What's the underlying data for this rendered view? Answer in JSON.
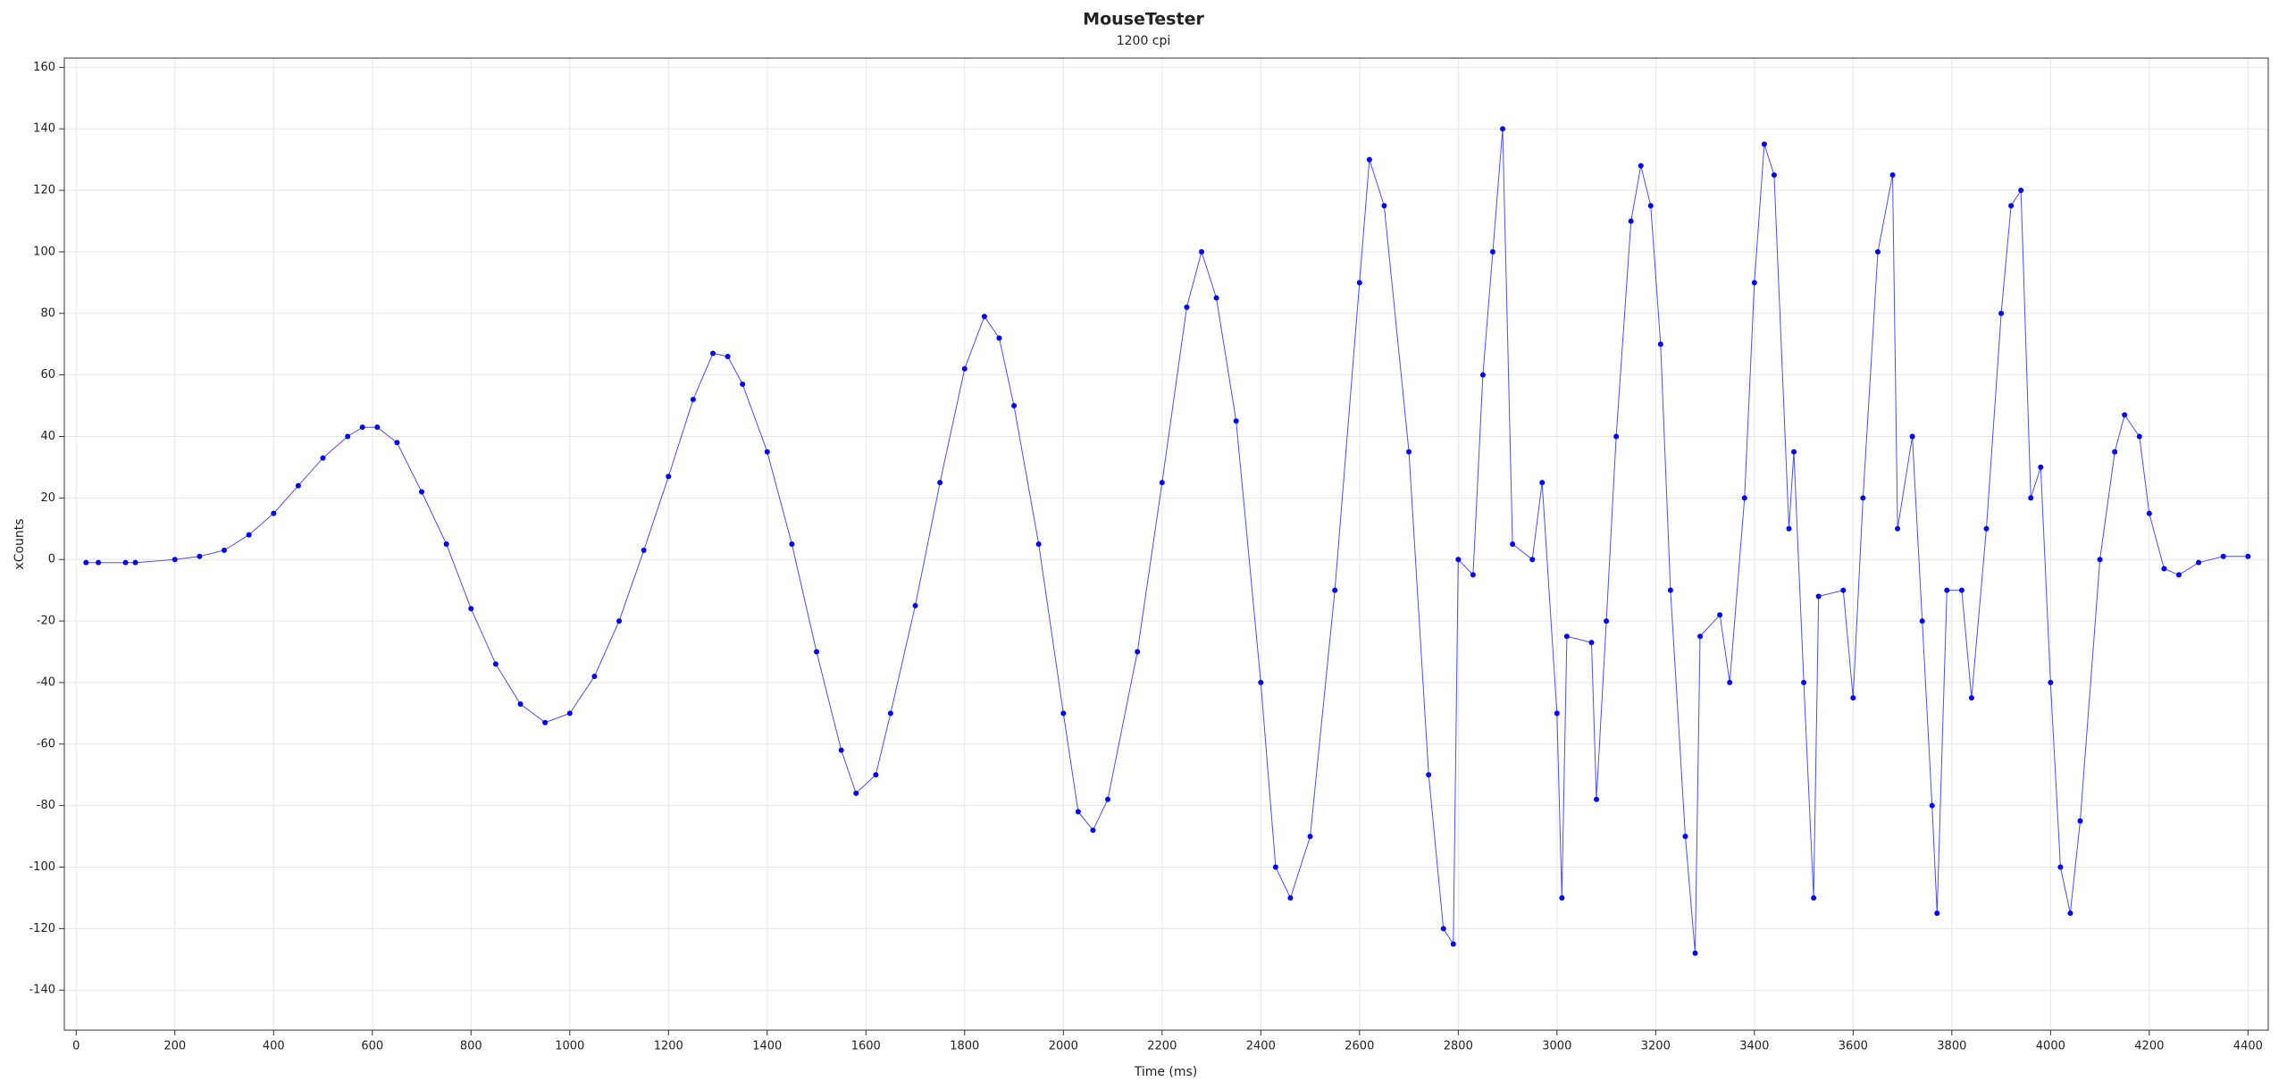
{
  "chart_data": {
    "type": "scatter",
    "title": "MouseTester",
    "subtitle": "1200 cpi",
    "x_label": "Time (ms)",
    "y_label": "xCounts",
    "series": [
      {
        "name": "xCounts",
        "color": "#0000ff",
        "x": [
          20,
          45,
          100,
          120,
          200,
          250,
          300,
          350,
          400,
          450,
          500,
          550,
          580,
          610,
          650,
          700,
          750,
          800,
          850,
          900,
          950,
          1000,
          1050,
          1100,
          1150,
          1200,
          1250,
          1290,
          1320,
          1350,
          1400,
          1450,
          1500,
          1550,
          1580,
          1620,
          1650,
          1700,
          1750,
          1800,
          1840,
          1870,
          1900,
          1950,
          2000,
          2030,
          2060,
          2090,
          2150,
          2200,
          2250,
          2280,
          2310,
          2350,
          2400,
          2430,
          2460,
          2500,
          2550,
          2600,
          2620,
          2650,
          2700,
          2740,
          2770,
          2790,
          2800,
          2830,
          2850,
          2870,
          2890,
          2910,
          2950,
          2970,
          3000,
          3010,
          3020,
          3070,
          3080,
          3100,
          3120,
          3150,
          3170,
          3190,
          3210,
          3230,
          3260,
          3280,
          3290,
          3330,
          3350,
          3380,
          3400,
          3420,
          3440,
          3470,
          3480,
          3500,
          3520,
          3530,
          3580,
          3600,
          3620,
          3650,
          3680,
          3690,
          3720,
          3740,
          3760,
          3770,
          3790,
          3820,
          3840,
          3870,
          3900,
          3920,
          3940,
          3960,
          3980,
          4000,
          4020,
          4040,
          4060,
          4100,
          4130,
          4150,
          4180,
          4200,
          4230,
          4260,
          4300,
          4350,
          4400
        ],
        "values": [
          -1,
          -1,
          -1,
          -1,
          0,
          1,
          3,
          8,
          15,
          24,
          33,
          40,
          43,
          43,
          38,
          22,
          5,
          -16,
          -34,
          -47,
          -53,
          -50,
          -38,
          -20,
          3,
          27,
          52,
          67,
          66,
          57,
          35,
          5,
          -30,
          -62,
          -76,
          -70,
          -50,
          -15,
          25,
          62,
          79,
          72,
          50,
          5,
          -50,
          -82,
          -88,
          -78,
          -30,
          25,
          82,
          100,
          85,
          45,
          -40,
          -100,
          -110,
          -90,
          -10,
          90,
          130,
          115,
          35,
          -70,
          -120,
          -125,
          0,
          -5,
          60,
          100,
          140,
          5,
          0,
          25,
          -50,
          -110,
          -25,
          -27,
          -78,
          -20,
          40,
          110,
          128,
          115,
          70,
          -10,
          -90,
          -128,
          -25,
          -18,
          -40,
          20,
          90,
          135,
          125,
          10,
          35,
          -40,
          -110,
          -12,
          -10,
          -45,
          20,
          100,
          125,
          10,
          40,
          -20,
          -80,
          -115,
          -10,
          -10,
          -45,
          10,
          80,
          115,
          120,
          20,
          30,
          -40,
          -100,
          -115,
          -85,
          0,
          35,
          47,
          40,
          15,
          -3,
          -5,
          -1,
          1,
          1
        ]
      }
    ],
    "xlim": [
      -24,
      4441
    ],
    "ylim": [
      -153,
      163
    ],
    "xticks": [
      0,
      200,
      400,
      600,
      800,
      1000,
      1200,
      1400,
      1600,
      1800,
      2000,
      2200,
      2400,
      2600,
      2800,
      3000,
      3200,
      3400,
      3600,
      3800,
      4000,
      4200,
      4400
    ],
    "yticks": [
      -140,
      -120,
      -100,
      -80,
      -60,
      -40,
      -20,
      0,
      20,
      40,
      60,
      80,
      100,
      120,
      140,
      160
    ],
    "grid": true
  }
}
